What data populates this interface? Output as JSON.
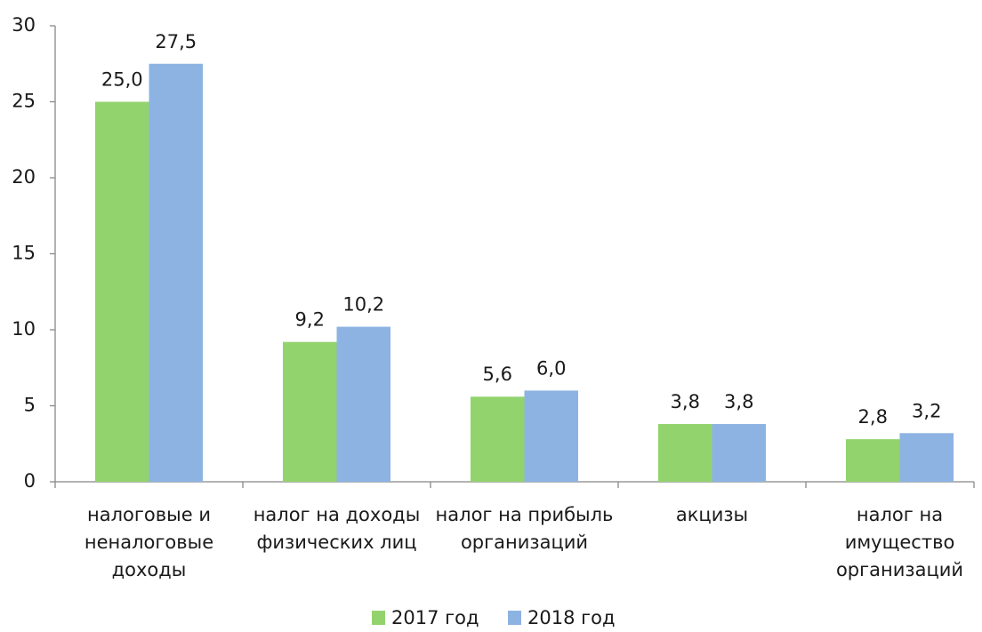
{
  "chart_data": {
    "type": "bar",
    "categories": [
      "налоговые и\nненалоговые\nдоходы",
      "налог на доходы\nфизических лиц",
      "налог на прибыль\nорганизаций",
      "акцизы",
      "налог на\nимущество\nорганизаций"
    ],
    "series": [
      {
        "name": "2017 год",
        "color": "#92d36e",
        "values": [
          25.0,
          9.2,
          5.6,
          3.8,
          2.8
        ],
        "value_labels": [
          "25,0",
          "9,2",
          "5,6",
          "3,8",
          "2,8"
        ]
      },
      {
        "name": "2018 год",
        "color": "#8db3e2",
        "values": [
          27.5,
          10.2,
          6.0,
          3.8,
          3.2
        ],
        "value_labels": [
          "27,5",
          "10,2",
          "6,0",
          "3,8",
          "3,2"
        ]
      }
    ],
    "ylim": [
      0,
      30
    ],
    "yticks": [
      0,
      5,
      10,
      15,
      20,
      25,
      30
    ],
    "legend": "bottom"
  }
}
